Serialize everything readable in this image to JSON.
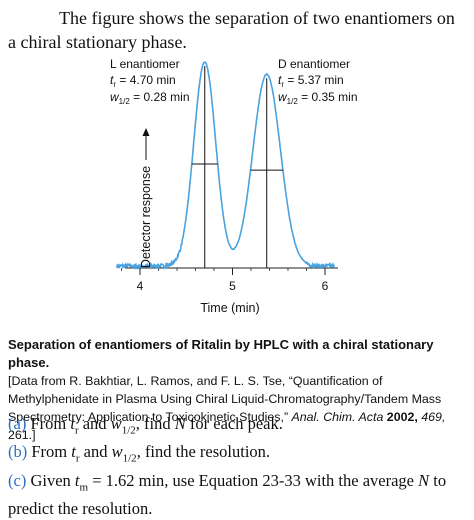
{
  "intro": "The figure shows the separation of two enantiomers on a chiral stationary phase.",
  "chart_data": {
    "type": "line",
    "title": "",
    "xlabel": "Time (min)",
    "ylabel": "Detector response",
    "xlim": [
      3.75,
      6.1
    ],
    "xticks": [
      4,
      5,
      6
    ],
    "grid": false,
    "color": "#4aa3df",
    "series": [
      {
        "name": "L enantiomer",
        "retention_time_min": 4.7,
        "half_width_min": 0.28,
        "relative_height": 1.0
      },
      {
        "name": "D enantiomer",
        "retention_time_min": 5.37,
        "half_width_min": 0.35,
        "relative_height": 0.94
      }
    ],
    "annotations": [
      {
        "title": "L enantiomer",
        "tr": "t_r = 4.70 min",
        "w": "w_1/2 = 0.28 min"
      },
      {
        "title": "D enantiomer",
        "tr": "t_r = 5.37 min",
        "w": "w_1/2 = 0.35 min"
      }
    ]
  },
  "caption": {
    "title": "Separation of enantiomers of Ritalin by HPLC with a chiral stationary phase.",
    "source_prefix": "[Data from R. Bakhtiar, L. Ramos, and F. L. S. Tse, “Quantification of Methylphenidate in Plasma Using Chiral Liquid-Chromatography/Tandem Mass Spectrometry: Application to Toxicokinetic Studies,” ",
    "journal": "Anal. Chim. Acta",
    "year": "2002,",
    "volume": "469,",
    "pages": "261.]"
  },
  "questions": [
    {
      "letter": "(a)",
      "text": "From t_r and w_1/2, find N for each peak."
    },
    {
      "letter": "(b)",
      "text": "From t_r and w_1/2, find the resolution."
    },
    {
      "letter": "(c)",
      "text": "Given t_m = 1.62 min, use Equation 23-33 with the average N to predict the resolution."
    }
  ]
}
